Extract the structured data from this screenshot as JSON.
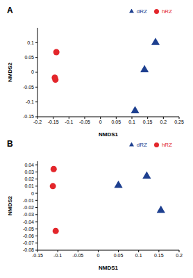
{
  "chart_data": [
    {
      "type": "scatter",
      "title": "A",
      "x_label": "NMDS1",
      "y_label": "NMDS2",
      "xlim": [
        -0.2,
        0.25
      ],
      "xticks": [
        -0.2,
        -0.15,
        -0.1,
        -0.05,
        0,
        0.05,
        0.1,
        0.15,
        0.2,
        0.25
      ],
      "ylim": [
        -0.15,
        0.15
      ],
      "yticks": [
        -0.15,
        -0.1,
        -0.05,
        0,
        0.05,
        0.1
      ],
      "grid": false,
      "legend": "upper right",
      "series": [
        {
          "name": "hRZ",
          "color": "#e3262b",
          "marker": "circle",
          "x": [
            -0.14,
            -0.145,
            -0.143
          ],
          "values": [
            0.068,
            -0.018,
            -0.025
          ]
        },
        {
          "name": "dRZ",
          "color": "#1d3f8f",
          "marker": "triangle",
          "x": [
            0.175,
            0.14,
            0.11
          ],
          "values": [
            0.1,
            0.008,
            -0.13
          ]
        }
      ]
    },
    {
      "type": "scatter",
      "title": "B",
      "x_label": "NMDS1",
      "y_label": "NMDS2",
      "xlim": [
        -0.15,
        0.2
      ],
      "xticks": [
        -0.15,
        -0.1,
        -0.05,
        0,
        0.05,
        0.1,
        0.15,
        0.2
      ],
      "ylim": [
        -0.08,
        0.045
      ],
      "yticks": [
        -0.08,
        -0.07,
        -0.06,
        -0.05,
        -0.04,
        -0.03,
        -0.02,
        -0.01,
        0,
        0.01,
        0.02,
        0.03,
        0.04
      ],
      "grid": false,
      "legend": "upper right",
      "series": [
        {
          "name": "hRZ",
          "color": "#e3262b",
          "marker": "circle",
          "x": [
            -0.11,
            -0.112,
            -0.105
          ],
          "values": [
            0.034,
            0.01,
            -0.053
          ]
        },
        {
          "name": "dRZ",
          "color": "#1d3f8f",
          "marker": "triangle",
          "x": [
            0.05,
            0.12,
            0.155
          ],
          "values": [
            0.011,
            0.024,
            -0.024
          ]
        }
      ]
    }
  ]
}
